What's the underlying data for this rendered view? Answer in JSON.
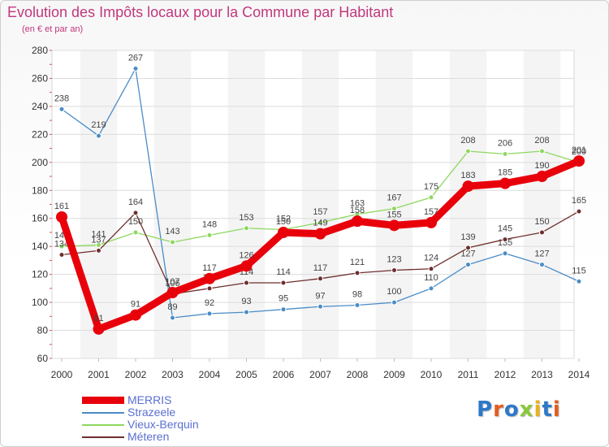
{
  "chart_data": {
    "type": "line",
    "title": "Evolution des Impôts locaux pour la Commune par Habitant",
    "subtitle": "(en € et par an)",
    "xlabel": "",
    "ylabel": "",
    "ylim": [
      60,
      280
    ],
    "yticks": [
      60,
      80,
      100,
      120,
      140,
      160,
      180,
      200,
      220,
      240,
      260,
      280
    ],
    "grid": true,
    "legend_position": "bottom-left",
    "x": [
      "2000",
      "2001",
      "2002",
      "2003",
      "2004",
      "2005",
      "2006",
      "2007",
      "2008",
      "2009",
      "2010",
      "2011",
      "2012",
      "2013",
      "2014"
    ],
    "series": [
      {
        "name": "Strazeele",
        "color": "#4a8cc7",
        "emphasis": false,
        "values": [
          238,
          219,
          267,
          89,
          92,
          93,
          95,
          97,
          98,
          100,
          110,
          127,
          135,
          127,
          115
        ],
        "labels": [
          "238",
          "219",
          "267",
          "89",
          "92",
          "93",
          "95",
          "97",
          "98",
          "100",
          "110",
          "127",
          "135",
          "127",
          "115"
        ]
      },
      {
        "name": "Vieux-Berquin",
        "color": "#8ed85f",
        "emphasis": false,
        "values": [
          140,
          141,
          150,
          143,
          148,
          153,
          152,
          157,
          163,
          167,
          175,
          208,
          206,
          208,
          200
        ],
        "labels": [
          "140",
          "141",
          "150",
          "143",
          "148",
          "153",
          "152",
          "157",
          "163",
          "167",
          "175",
          "208",
          "206",
          "208",
          "200"
        ]
      },
      {
        "name": "Méteren",
        "color": "#6e2e2e",
        "emphasis": false,
        "values": [
          134,
          137,
          164,
          106,
          110,
          114,
          114,
          117,
          121,
          123,
          124,
          139,
          145,
          150,
          165
        ],
        "labels": [
          "134",
          "137",
          "164",
          "106",
          "110",
          "114",
          "114",
          "117",
          "121",
          "123",
          "124",
          "139",
          "145",
          "150",
          "165"
        ]
      },
      {
        "name": "MERRIS",
        "color": "#e8000b",
        "emphasis": true,
        "values": [
          161,
          81,
          91,
          107,
          117,
          126,
          150,
          149,
          158,
          155,
          157,
          183,
          185,
          190,
          201
        ],
        "labels": [
          "161",
          "81",
          "91",
          "107",
          "117",
          "126",
          "150",
          "149",
          "158",
          "155",
          "157",
          "183",
          "185",
          "190",
          "201"
        ]
      }
    ]
  },
  "legend": {
    "items": [
      {
        "label": "MERRIS",
        "color": "#e8000b"
      },
      {
        "label": "Strazeele",
        "color": "#4a8cc7"
      },
      {
        "label": "Vieux-Berquin",
        "color": "#8ed85f"
      },
      {
        "label": "Méteren",
        "color": "#6e2e2e"
      }
    ]
  },
  "branding": {
    "logo_text": "Proxiti"
  }
}
